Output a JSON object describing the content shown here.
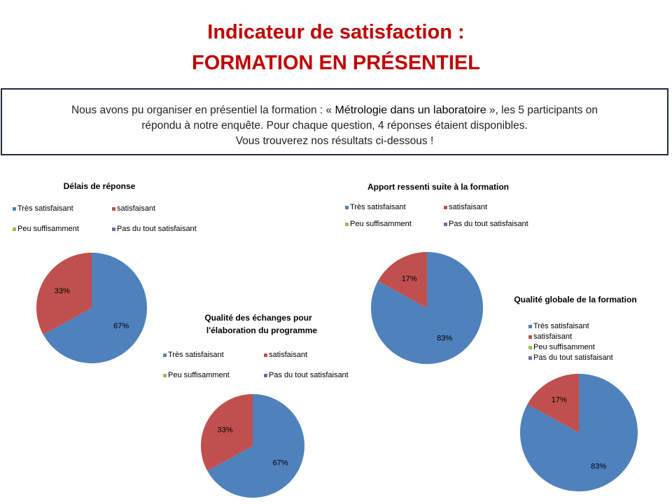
{
  "page": {
    "title_line1": "Indicateur de satisfaction :",
    "title_line2": "FORMATION EN PRÉSENTIEL"
  },
  "intro": {
    "line1_a": "Nous avons pu organiser en présentiel la formation : « ",
    "line1_em": "Métrologie dans un laboratoire",
    "line1_b": " », les 5 participants on",
    "line2": "répondu à notre enquête.  Pour chaque question, 4 réponses étaient disponibles.",
    "line3": "Vous trouverez nos résultats ci-dessous !"
  },
  "colors": {
    "title": "#c00000",
    "tres_satisfaisant": "#4f81bd",
    "satisfaisant": "#c0504d",
    "peu_suffisamment": "#9bbb59",
    "pas_du_tout": "#8064a2"
  },
  "chart_data": [
    {
      "type": "pie",
      "title": "Délais de réponse",
      "categories": [
        "Très satisfaisant",
        "satisfaisant",
        "Peu suffisamment",
        "Pas du tout satisfaisant"
      ],
      "values": [
        67,
        33,
        0,
        0
      ],
      "data_labels": [
        "67%",
        "33%",
        "",
        ""
      ],
      "legend": "top-grid"
    },
    {
      "type": "pie",
      "title": "Apport ressenti suite à la formation",
      "categories": [
        "Très satisfaisant",
        "satisfaisant",
        "Peu suffisamment",
        "Pas du tout satisfaisant"
      ],
      "values": [
        83,
        17,
        0,
        0
      ],
      "data_labels": [
        "83%",
        "17%",
        "",
        ""
      ],
      "legend": "top-grid"
    },
    {
      "type": "pie",
      "title": "Qualité des échanges pour l'élaboration du programme",
      "categories": [
        "Très satisfaisant",
        "satisfaisant",
        "Peu suffisamment",
        "Pas du tout satisfaisant"
      ],
      "values": [
        67,
        33,
        0,
        0
      ],
      "data_labels": [
        "67%",
        "33%",
        "",
        ""
      ],
      "legend": "top-grid"
    },
    {
      "type": "pie",
      "title": "Qualité globale de la formation",
      "categories": [
        "Très satisfaisant",
        "satisfaisant",
        "Peu suffisamment",
        "Pas du tout satisfaisant"
      ],
      "values": [
        83,
        17,
        0,
        0
      ],
      "data_labels": [
        "83%",
        "17%",
        "",
        ""
      ],
      "legend": "top-list"
    }
  ]
}
